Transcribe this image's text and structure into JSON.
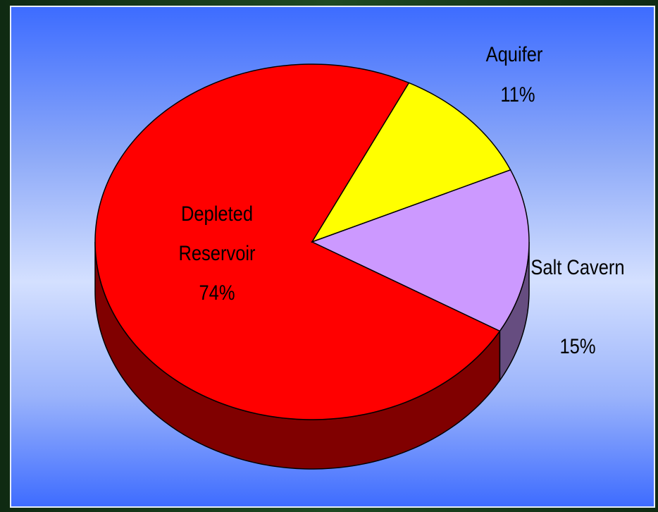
{
  "chart_data": {
    "type": "pie",
    "categories": [
      "Depleted Reservoir",
      "Aquifer",
      "Salt Cavern"
    ],
    "values": [
      74,
      11,
      15
    ],
    "value_labels": [
      "74%",
      "11%",
      "15%"
    ],
    "colors": [
      "#ff0000",
      "#ffff00",
      "#cc99ff"
    ],
    "three_d": true
  }
}
